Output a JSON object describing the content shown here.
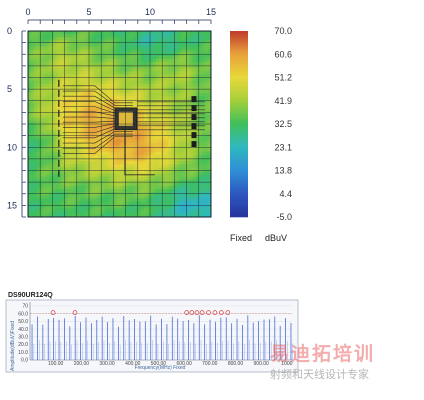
{
  "scan": {
    "type": "heatmap",
    "x_ticks": [
      "0",
      "5",
      "10",
      "15"
    ],
    "y_ticks": [
      "0",
      "5",
      "10",
      "15"
    ],
    "x_tick_values": [
      0,
      5,
      10,
      15
    ],
    "y_tick_values": [
      0,
      5,
      10,
      15
    ],
    "xlim": [
      0,
      15
    ],
    "ylim": [
      0,
      16
    ],
    "grid": true,
    "colorbar_ticks": [
      "70.0",
      "60.6",
      "51.2",
      "41.9",
      "32.5",
      "23.1",
      "13.8",
      "4.4",
      "-5.0"
    ],
    "colorbar_range": [
      -5.0,
      70.0
    ],
    "colorbar_colors": [
      "#c0392b",
      "#e8a23a",
      "#e8d83a",
      "#a4cf3a",
      "#3fbf5a",
      "#2fb8c0",
      "#2f8fd6",
      "#2d57c0",
      "#26349c"
    ],
    "mode_label": "Fixed",
    "unit_label": "dBuV",
    "background_level": 32,
    "hotspots": [
      {
        "x": 7.5,
        "y": 8.5,
        "sx": 4.2,
        "sy": 3.0,
        "amp": 22
      },
      {
        "x": 4.0,
        "y": 6.0,
        "sx": 2.5,
        "sy": 3.0,
        "amp": 10
      },
      {
        "x": 9.5,
        "y": 10.5,
        "sx": 2.0,
        "sy": 1.6,
        "amp": 9
      },
      {
        "x": 2.5,
        "y": 2.0,
        "sx": 1.6,
        "sy": 1.2,
        "amp": 6
      },
      {
        "x": 12.5,
        "y": 3.5,
        "sx": 1.6,
        "sy": 1.3,
        "amp": 7
      },
      {
        "x": 1.0,
        "y": 9.5,
        "sx": 1.0,
        "sy": 1.4,
        "amp": -8
      },
      {
        "x": 13.5,
        "y": 15.0,
        "sx": 1.8,
        "sy": 1.2,
        "amp": -10
      },
      {
        "x": 10.5,
        "y": 1.0,
        "sx": 1.6,
        "sy": 1.0,
        "amp": -6
      }
    ]
  },
  "spectrum": {
    "type": "bar",
    "title": "DS90UR124Q",
    "ylabel": "Amplitude(dBuV)Fixed",
    "xlabel": "Frequency(MHz) Fixed",
    "x_ticks": [
      "100.00",
      "200.00",
      "300.00",
      "400.00",
      "500.00",
      "600.00",
      "700.00",
      "800.00",
      "900.00",
      "1000"
    ],
    "x_tick_values": [
      100,
      200,
      300,
      400,
      500,
      600,
      700,
      800,
      900,
      1000
    ],
    "y_ticks": [
      "70",
      "60.0",
      "50.0",
      "40.0",
      "30.0",
      "20.0",
      "10.0",
      "0.0"
    ],
    "y_tick_values": [
      70,
      60,
      50,
      40,
      30,
      20,
      10,
      0
    ],
    "xlim": [
      0,
      1020
    ],
    "ylim": [
      0,
      75
    ],
    "spike_spacing_mhz": 21,
    "limit_line": 60,
    "flagged_peaks_mhz": [
      90,
      175,
      610,
      630,
      650,
      670,
      695,
      720,
      745,
      770
    ]
  },
  "watermark": {
    "main": "易迪拓培训",
    "sub": "射频和天线设计专家"
  }
}
